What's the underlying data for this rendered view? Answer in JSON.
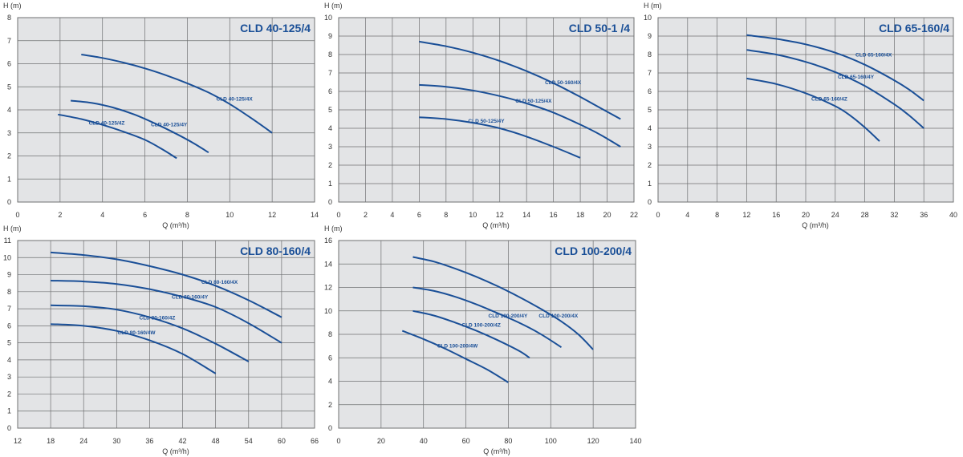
{
  "colors": {
    "plot_bg": "#e3e4e6",
    "grid": "#6f7072",
    "curve": "#1a4f97",
    "text": "#333333"
  },
  "chart_data": [
    {
      "type": "line",
      "title": "CLD 40-125/4",
      "ylabel": "H (m)",
      "xlabel": "Q (m³/h)",
      "xlim": [
        0,
        14
      ],
      "ylim": [
        0,
        8
      ],
      "xticks": [
        "0",
        "2",
        "4",
        "6",
        "8",
        "10",
        "12",
        "14"
      ],
      "yticks": [
        "0",
        "1",
        "2",
        "3",
        "4",
        "5",
        "6",
        "7",
        "8"
      ],
      "grid": true,
      "series": [
        {
          "name": "CLD 40-125/4X",
          "x": [
            3,
            4,
            5,
            6,
            7,
            8,
            9,
            10,
            11,
            12
          ],
          "y": [
            6.4,
            6.25,
            6.05,
            5.8,
            5.5,
            5.15,
            4.75,
            4.25,
            3.65,
            3.0
          ]
        },
        {
          "name": "CLD 40-125/4Y",
          "x": [
            2.5,
            3.5,
            4.5,
            5.5,
            6.5,
            7.5,
            8.3,
            9
          ],
          "y": [
            4.4,
            4.3,
            4.1,
            3.8,
            3.4,
            2.95,
            2.55,
            2.15
          ]
        },
        {
          "name": "CLD 40-125/4Z",
          "x": [
            1.9,
            3,
            4,
            5,
            6,
            6.8,
            7.5
          ],
          "y": [
            3.8,
            3.6,
            3.35,
            3.05,
            2.7,
            2.3,
            1.9
          ]
        }
      ]
    },
    {
      "type": "line",
      "title": "CLD 50-1 /4",
      "ylabel": "H (m)",
      "xlabel": "Q (m³/h)",
      "xlim": [
        0,
        22
      ],
      "ylim": [
        0,
        10
      ],
      "xticks": [
        "0",
        "2",
        "4",
        "6",
        "8",
        "10",
        "12",
        "14",
        "16",
        "18",
        "20",
        "22"
      ],
      "yticks": [
        "0",
        "1",
        "2",
        "3",
        "4",
        "5",
        "6",
        "7",
        "8",
        "9",
        "10"
      ],
      "grid": true,
      "series": [
        {
          "name": "CLD 50-160/4X",
          "x": [
            6,
            8,
            10,
            12,
            14,
            16,
            18,
            19.5,
            21
          ],
          "y": [
            8.7,
            8.45,
            8.1,
            7.65,
            7.1,
            6.45,
            5.7,
            5.1,
            4.5
          ]
        },
        {
          "name": "CLD 50-125/4X",
          "x": [
            6,
            8,
            10,
            12,
            14,
            16,
            18,
            19.5,
            21
          ],
          "y": [
            6.35,
            6.25,
            6.05,
            5.75,
            5.35,
            4.85,
            4.2,
            3.65,
            3.0
          ]
        },
        {
          "name": "CLD 50-125/4Y",
          "x": [
            6,
            8,
            10,
            12,
            14,
            16,
            18
          ],
          "y": [
            4.6,
            4.5,
            4.3,
            4.0,
            3.55,
            3.0,
            2.4
          ]
        }
      ]
    },
    {
      "type": "line",
      "title": "CLD 65-160/4",
      "ylabel": "H (m)",
      "xlabel": "Q (m³/h)",
      "xlim": [
        0,
        40
      ],
      "ylim": [
        0,
        10
      ],
      "xticks": [
        "0",
        "4",
        "8",
        "12",
        "16",
        "20",
        "24",
        "28",
        "32",
        "36",
        "40"
      ],
      "yticks": [
        "0",
        "1",
        "2",
        "3",
        "4",
        "5",
        "6",
        "7",
        "8",
        "9",
        "10"
      ],
      "grid": true,
      "series": [
        {
          "name": "CLD 65-160/4X",
          "x": [
            12,
            16,
            20,
            24,
            28,
            32,
            34,
            36
          ],
          "y": [
            9.05,
            8.85,
            8.55,
            8.1,
            7.45,
            6.6,
            6.1,
            5.5
          ]
        },
        {
          "name": "CLD 65-160/4Y",
          "x": [
            12,
            16,
            20,
            24,
            28,
            32,
            34,
            36
          ],
          "y": [
            8.25,
            8.0,
            7.6,
            7.05,
            6.3,
            5.3,
            4.7,
            4.0
          ]
        },
        {
          "name": "CLD 65-160/4Z",
          "x": [
            12,
            16,
            20,
            24,
            26,
            28,
            30
          ],
          "y": [
            6.7,
            6.4,
            5.9,
            5.2,
            4.7,
            4.05,
            3.3
          ]
        }
      ]
    },
    {
      "type": "line",
      "title": "CLD 80-160/4",
      "ylabel": "H (m)",
      "xlabel": "Q (m³/h)",
      "xlim": [
        12,
        66
      ],
      "ylim": [
        0,
        11
      ],
      "xticks": [
        "12",
        "18",
        "24",
        "30",
        "36",
        "42",
        "48",
        "54",
        "60",
        "66"
      ],
      "yticks": [
        "0",
        "1",
        "2",
        "3",
        "4",
        "5",
        "6",
        "7",
        "8",
        "9",
        "10",
        "11"
      ],
      "grid": true,
      "series": [
        {
          "name": "CLD 80-160/4X",
          "x": [
            18,
            24,
            30,
            36,
            42,
            48,
            54,
            60
          ],
          "y": [
            10.3,
            10.15,
            9.9,
            9.5,
            9.0,
            8.35,
            7.5,
            6.5
          ]
        },
        {
          "name": "CLD 80-160/4Y",
          "x": [
            18,
            24,
            30,
            36,
            42,
            48,
            54,
            60
          ],
          "y": [
            8.65,
            8.6,
            8.45,
            8.15,
            7.7,
            7.1,
            6.15,
            5.0
          ]
        },
        {
          "name": "CLD 80-160/4Z",
          "x": [
            18,
            24,
            30,
            36,
            42,
            48,
            54
          ],
          "y": [
            7.2,
            7.15,
            6.95,
            6.5,
            5.85,
            4.95,
            3.9
          ]
        },
        {
          "name": "CLD 80-160/4W",
          "x": [
            18,
            24,
            30,
            36,
            42,
            48
          ],
          "y": [
            6.1,
            6.0,
            5.7,
            5.15,
            4.35,
            3.2
          ]
        }
      ]
    },
    {
      "type": "line",
      "title": "CLD 100-200/4",
      "ylabel": "H (m)",
      "xlabel": "Q (m³/h)",
      "xlim": [
        0,
        140
      ],
      "ylim": [
        0,
        16
      ],
      "xticks": [
        "0",
        "20",
        "40",
        "60",
        "80",
        "100",
        "120",
        "140"
      ],
      "yticks": [
        "0",
        "2",
        "4",
        "6",
        "8",
        "10",
        "12",
        "14",
        "16"
      ],
      "grid": true,
      "series": [
        {
          "name": "CLD 100-200/4X",
          "x": [
            35,
            45,
            55,
            65,
            75,
            85,
            95,
            105,
            113,
            120
          ],
          "y": [
            14.6,
            14.2,
            13.6,
            12.9,
            12.1,
            11.2,
            10.2,
            9.1,
            8.0,
            6.7
          ]
        },
        {
          "name": "CLD 100-200/4Y",
          "x": [
            35,
            45,
            55,
            65,
            75,
            85,
            95,
            105
          ],
          "y": [
            12.0,
            11.7,
            11.2,
            10.55,
            9.8,
            9.0,
            8.05,
            6.9
          ]
        },
        {
          "name": "CLD 100-200/4Z",
          "x": [
            35,
            45,
            55,
            65,
            75,
            85,
            90
          ],
          "y": [
            10.0,
            9.6,
            9.0,
            8.3,
            7.5,
            6.6,
            6.0
          ]
        },
        {
          "name": "CLD 100-200/4W",
          "x": [
            30,
            40,
            50,
            60,
            70,
            80
          ],
          "y": [
            8.3,
            7.6,
            6.8,
            5.9,
            5.0,
            3.9
          ]
        }
      ]
    }
  ]
}
